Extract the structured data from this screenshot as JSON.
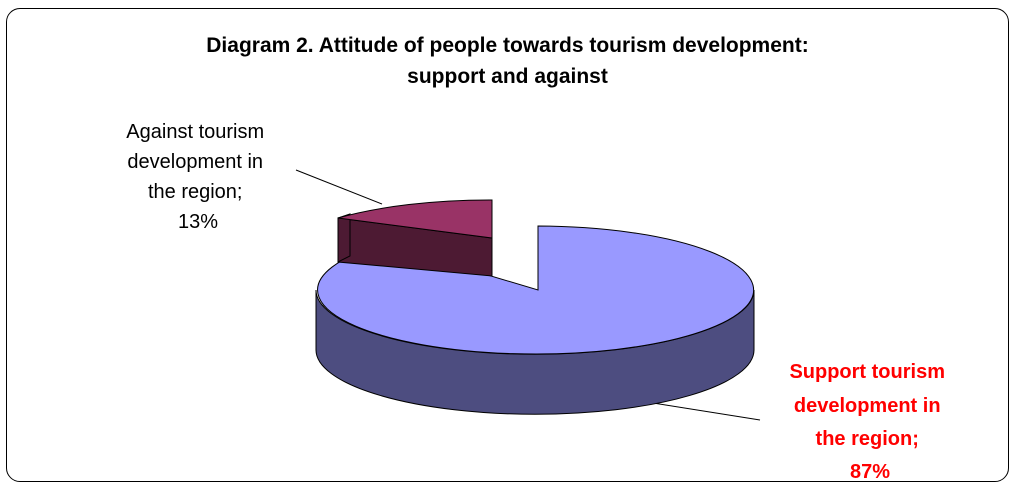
{
  "chart_data": {
    "type": "pie",
    "title_lines": [
      "Diagram 2. Attitude of people towards tourism development:",
      "support and against"
    ],
    "slices": [
      {
        "label_lines": [
          "Support tourism",
          "development in",
          "the region;",
          "87%"
        ],
        "category": "Support tourism development in the region",
        "value": 87,
        "color": "#9999ff",
        "side_color": "#4d4d80",
        "label_color": "#ff0000"
      },
      {
        "label_lines": [
          "Against tourism",
          "development in",
          "the region;",
          "13%"
        ],
        "category": "Against tourism development in the region",
        "value": 13,
        "color": "#993366",
        "side_color": "#4d1a33",
        "label_color": "#000000"
      }
    ],
    "three_d": true,
    "exploded": "Against tourism development in the region"
  }
}
